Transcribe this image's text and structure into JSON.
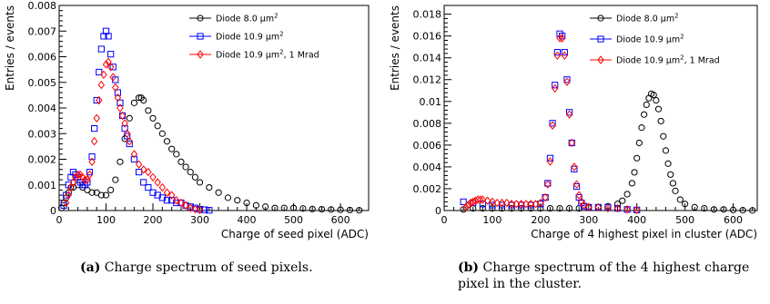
{
  "chart_data": [
    {
      "type": "scatter",
      "title": "",
      "xlabel": "Charge of seed pixel (ADC)",
      "ylabel": "Entries / events",
      "xlim": [
        0,
        660
      ],
      "ylim": [
        0,
        0.008
      ],
      "xticks": [
        0,
        100,
        200,
        300,
        400,
        500,
        600
      ],
      "yticks": [
        0,
        0.001,
        0.002,
        0.003,
        0.004,
        0.005,
        0.006,
        0.007,
        0.008
      ],
      "ytick_labels": [
        "0",
        "0.001",
        "0.002",
        "0.003",
        "0.004",
        "0.005",
        "0.006",
        "0.007",
        "0.008"
      ],
      "legend_position": "top-right",
      "series": [
        {
          "name": "Diode 8.0 μm²",
          "marker": "circle",
          "color": "#000000",
          "x": [
            5,
            10,
            15,
            20,
            25,
            30,
            40,
            50,
            60,
            70,
            80,
            90,
            100,
            110,
            120,
            130,
            140,
            150,
            160,
            170,
            175,
            180,
            190,
            200,
            210,
            220,
            230,
            240,
            250,
            260,
            270,
            280,
            290,
            300,
            320,
            340,
            360,
            380,
            400,
            420,
            440,
            460,
            480,
            500,
            520,
            540,
            560,
            580,
            600,
            620,
            640
          ],
          "y": [
            0.0001,
            0.0003,
            0.0005,
            0.0007,
            0.0009,
            0.0009,
            0.001,
            0.0009,
            0.0008,
            0.0007,
            0.0007,
            0.0006,
            0.0006,
            0.0008,
            0.0012,
            0.0019,
            0.0028,
            0.0036,
            0.0042,
            0.0044,
            0.0044,
            0.0043,
            0.0039,
            0.0036,
            0.0033,
            0.003,
            0.0027,
            0.0024,
            0.0022,
            0.0019,
            0.0017,
            0.0015,
            0.0013,
            0.0011,
            0.0009,
            0.0007,
            0.0005,
            0.0004,
            0.0003,
            0.0002,
            0.00015,
            0.0001,
            0.0001,
            0.0001,
            8e-05,
            6e-05,
            5e-05,
            4e-05,
            3e-05,
            2e-05,
            1e-05
          ]
        },
        {
          "name": "Diode 10.9 μm²",
          "marker": "square",
          "color": "#0000ff",
          "x": [
            10,
            15,
            20,
            25,
            30,
            35,
            40,
            45,
            50,
            55,
            60,
            65,
            70,
            75,
            80,
            85,
            90,
            95,
            100,
            105,
            110,
            115,
            120,
            125,
            130,
            135,
            140,
            145,
            150,
            160,
            170,
            180,
            190,
            200,
            210,
            220,
            230,
            240,
            250,
            260,
            270,
            280,
            290,
            300,
            310,
            320
          ],
          "y": [
            0.0002,
            0.0006,
            0.001,
            0.0013,
            0.0015,
            0.0014,
            0.0013,
            0.0011,
            0.001,
            0.001,
            0.0011,
            0.0015,
            0.0021,
            0.0032,
            0.0043,
            0.0054,
            0.0063,
            0.0068,
            0.007,
            0.0068,
            0.0061,
            0.0056,
            0.0051,
            0.0046,
            0.0042,
            0.0037,
            0.0032,
            0.0029,
            0.0026,
            0.002,
            0.0015,
            0.0011,
            0.0009,
            0.0007,
            0.0006,
            0.0005,
            0.0004,
            0.0004,
            0.0003,
            0.0003,
            0.0002,
            0.00015,
            0.0001,
            5e-05,
            3e-05,
            1e-05
          ]
        },
        {
          "name": "Diode 10.9 μm², 1 Mrad",
          "marker": "diamond",
          "color": "#ff0000",
          "x": [
            15,
            20,
            25,
            30,
            35,
            40,
            45,
            50,
            55,
            60,
            65,
            70,
            75,
            80,
            85,
            90,
            95,
            100,
            105,
            110,
            115,
            120,
            125,
            130,
            135,
            140,
            145,
            150,
            160,
            170,
            180,
            190,
            200,
            210,
            220,
            230,
            240,
            250,
            260,
            270,
            280,
            290,
            300
          ],
          "y": [
            0.0003,
            0.0006,
            0.0009,
            0.0011,
            0.0013,
            0.0014,
            0.0014,
            0.0013,
            0.0012,
            0.0012,
            0.0014,
            0.0019,
            0.0027,
            0.0036,
            0.0043,
            0.0049,
            0.0053,
            0.0057,
            0.0058,
            0.0056,
            0.0052,
            0.0048,
            0.0044,
            0.004,
            0.0037,
            0.0034,
            0.003,
            0.0027,
            0.0022,
            0.0018,
            0.0016,
            0.0015,
            0.0013,
            0.0011,
            0.0009,
            0.0007,
            0.0006,
            0.0004,
            0.0003,
            0.0002,
            0.0001,
            5e-05,
            2e-05
          ]
        }
      ]
    },
    {
      "type": "scatter",
      "title": "",
      "xlabel": "Charge of 4 highest pixel in cluster (ADC)",
      "ylabel": "Entries / events",
      "xlim": [
        0,
        650
      ],
      "ylim": [
        0,
        0.0188
      ],
      "xticks": [
        0,
        100,
        200,
        300,
        400,
        500,
        600
      ],
      "yticks": [
        0,
        0.002,
        0.004,
        0.006,
        0.008,
        0.01,
        0.012,
        0.014,
        0.016,
        0.018
      ],
      "ytick_labels": [
        "0",
        "0.002",
        "0.004",
        "0.006",
        "0.008",
        "0.01",
        "0.012",
        "0.014",
        "0.016",
        "0.018"
      ],
      "legend_position": "top-right",
      "series": [
        {
          "name": "Diode 8.0 μm²",
          "marker": "circle",
          "color": "#000000",
          "x": [
            40,
            60,
            80,
            100,
            120,
            140,
            160,
            180,
            200,
            220,
            240,
            260,
            280,
            300,
            320,
            340,
            360,
            370,
            380,
            390,
            395,
            400,
            405,
            410,
            415,
            420,
            425,
            430,
            435,
            440,
            445,
            450,
            455,
            460,
            465,
            470,
            475,
            480,
            490,
            500,
            520,
            540,
            560,
            580,
            600,
            620,
            640
          ],
          "y": [
            0.0001,
            0.0002,
            0.0002,
            0.0002,
            0.0002,
            0.0002,
            0.0002,
            0.0002,
            0.0002,
            0.0002,
            0.0002,
            0.0002,
            0.0002,
            0.0003,
            0.0003,
            0.0004,
            0.0006,
            0.0009,
            0.0015,
            0.0025,
            0.0035,
            0.0048,
            0.0062,
            0.0076,
            0.0088,
            0.0097,
            0.0103,
            0.0107,
            0.0106,
            0.0101,
            0.0093,
            0.0082,
            0.0068,
            0.0055,
            0.0043,
            0.0033,
            0.0025,
            0.0018,
            0.001,
            0.0006,
            0.0003,
            0.0002,
            0.0001,
            0.0001,
            5e-05,
            3e-05,
            1e-05
          ]
        },
        {
          "name": "Diode 10.9 μm²",
          "marker": "square",
          "color": "#0000ff",
          "x": [
            40,
            60,
            80,
            100,
            120,
            140,
            160,
            180,
            200,
            210,
            215,
            220,
            225,
            230,
            235,
            240,
            245,
            250,
            255,
            260,
            265,
            270,
            275,
            280,
            285,
            290,
            300,
            320,
            340,
            360,
            380,
            400
          ],
          "y": [
            0.0008,
            0.0007,
            0.0006,
            0.0005,
            0.0005,
            0.0005,
            0.0005,
            0.0005,
            0.0006,
            0.0012,
            0.0025,
            0.0048,
            0.008,
            0.0115,
            0.0145,
            0.0162,
            0.016,
            0.0145,
            0.012,
            0.009,
            0.0062,
            0.0038,
            0.0022,
            0.0012,
            0.0007,
            0.0004,
            0.0003,
            0.0003,
            0.0003,
            0.0002,
            0.0001,
            5e-05
          ]
        },
        {
          "name": "Diode 10.9 μm², 1 Mrad",
          "marker": "diamond",
          "color": "#ff0000",
          "x": [
            45,
            50,
            55,
            60,
            65,
            70,
            75,
            80,
            90,
            100,
            110,
            120,
            130,
            140,
            150,
            160,
            170,
            180,
            190,
            200,
            210,
            215,
            220,
            225,
            230,
            235,
            240,
            245,
            250,
            255,
            260,
            265,
            270,
            275,
            280,
            285,
            290,
            300,
            320,
            340,
            360,
            380,
            400
          ],
          "y": [
            0.0003,
            0.0005,
            0.0007,
            0.0008,
            0.0009,
            0.001,
            0.001,
            0.001,
            0.0009,
            0.0008,
            0.0007,
            0.0007,
            0.0007,
            0.0006,
            0.0006,
            0.0006,
            0.0006,
            0.0006,
            0.0006,
            0.0007,
            0.0012,
            0.0024,
            0.0045,
            0.0078,
            0.0112,
            0.0142,
            0.0158,
            0.0158,
            0.0142,
            0.0118,
            0.0088,
            0.0062,
            0.004,
            0.0024,
            0.0014,
            0.0008,
            0.0005,
            0.0003,
            0.0003,
            0.0002,
            0.0002,
            0.0001,
            5e-05
          ]
        }
      ]
    }
  ],
  "captions": [
    {
      "label": "(a)",
      "text": "Charge spectrum of seed pixels."
    },
    {
      "label": "(b)",
      "text": "Charge spectrum of the 4 highest charge",
      "text2": "pixel in the cluster."
    }
  ]
}
